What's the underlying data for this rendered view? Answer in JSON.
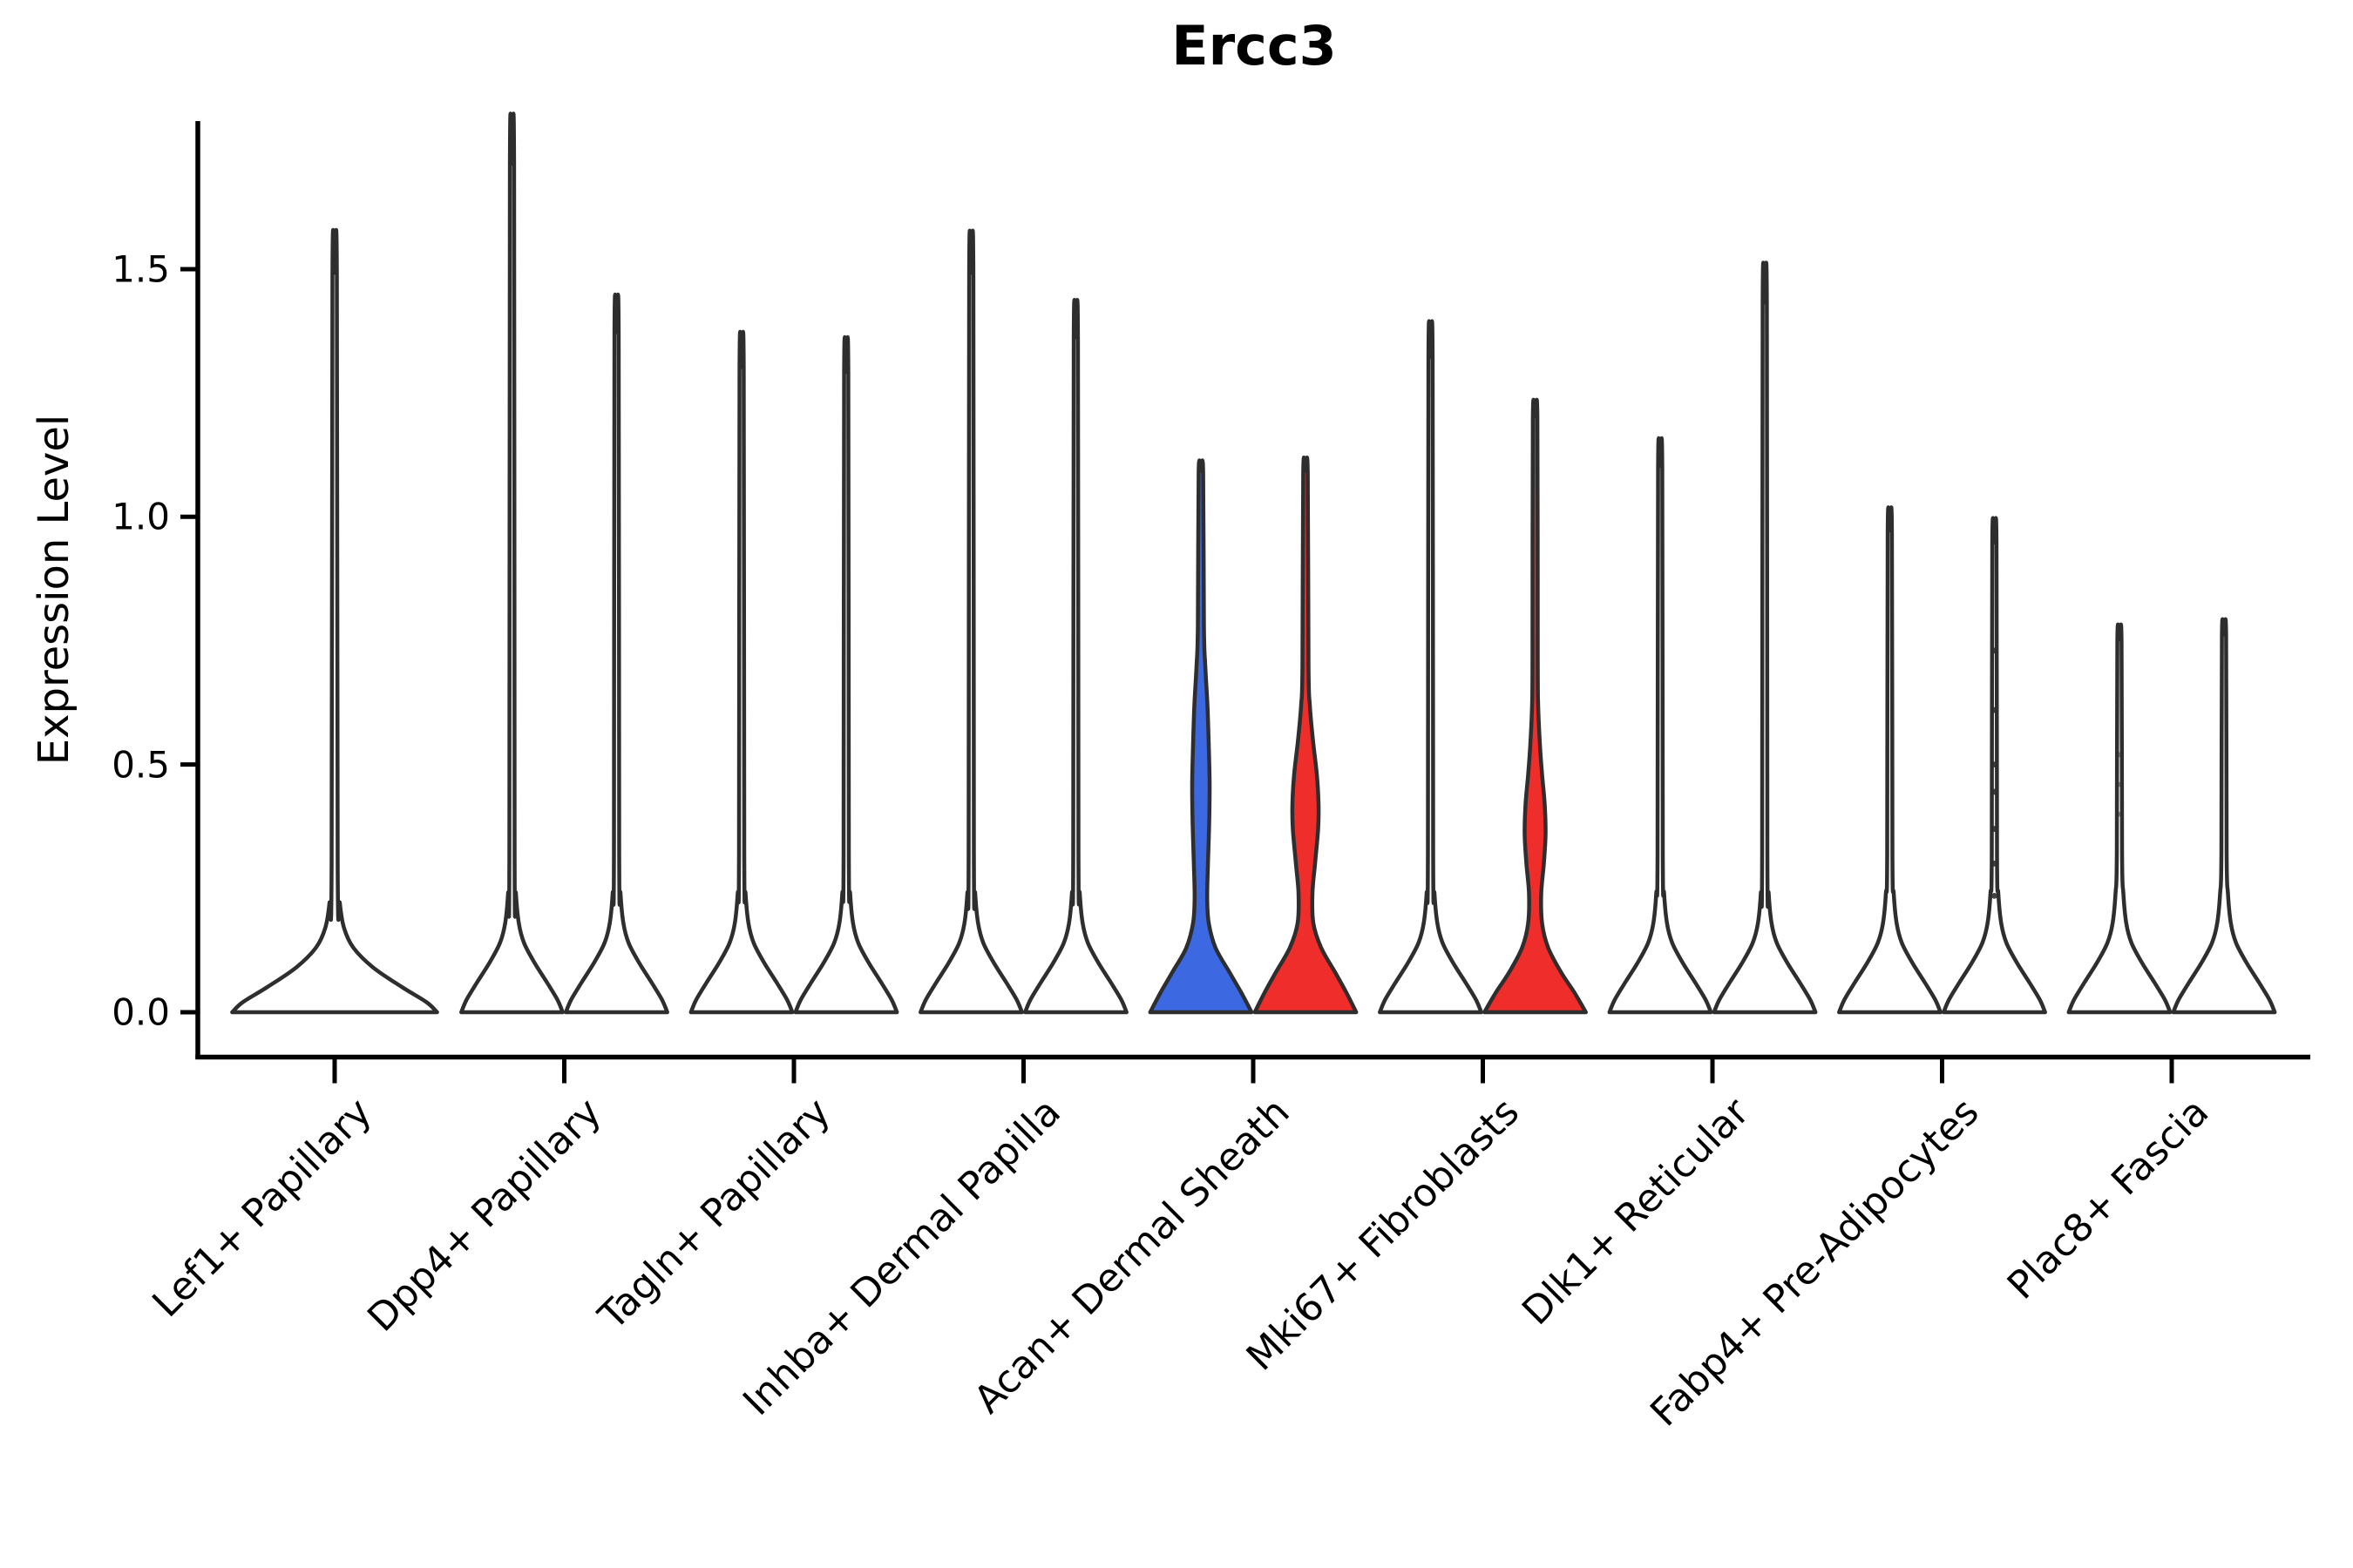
{
  "title": "Ercc3",
  "ylabel": "Expression Level",
  "chart_data": {
    "type": "violin",
    "title": "Ercc3",
    "xlabel": "",
    "ylabel": "Expression Level",
    "ylim": [
      -0.09,
      1.8
    ],
    "yticks": [
      0.0,
      0.5,
      1.0,
      1.5
    ],
    "ytick_labels": [
      "0.0",
      "0.5",
      "1.0",
      "1.5"
    ],
    "grid": false,
    "legend": "none",
    "categories": [
      "Lef1+ Papillary",
      "Dpp4+ Papillary",
      "Tagln+ Papillary",
      "Inhba+ Dermal Papilla",
      "Acan+ Dermal Sheath",
      "Mki67+ Fibroblasts",
      "Dlk1+ Reticular",
      "Fabp4+ Pre-Adipocytes",
      "Plac8+ Fascia"
    ],
    "colors": {
      "group_blue": "#3C69E1",
      "group_red": "#EF2D2A",
      "outline": "#2e2e2e",
      "axis": "#000000"
    },
    "violins": [
      {
        "category": 0,
        "position": "center",
        "max": 1.49,
        "fill": "#ffffff",
        "profile": "wide_spike",
        "width": 120
      },
      {
        "category": 1,
        "position": "left",
        "max": 1.71,
        "fill": "#ffffff",
        "profile": "spike",
        "width": 60
      },
      {
        "category": 1,
        "position": "right",
        "max": 1.37,
        "fill": "#ffffff",
        "profile": "spike",
        "width": 60
      },
      {
        "category": 2,
        "position": "left",
        "max": 1.3,
        "fill": "#ffffff",
        "profile": "spike",
        "width": 60
      },
      {
        "category": 2,
        "position": "right",
        "max": 1.29,
        "fill": "#ffffff",
        "profile": "spike",
        "width": 60
      },
      {
        "category": 3,
        "position": "left",
        "max": 1.49,
        "fill": "#ffffff",
        "profile": "spike",
        "width": 60
      },
      {
        "category": 3,
        "position": "right",
        "max": 1.36,
        "fill": "#ffffff",
        "profile": "spike",
        "width": 60
      },
      {
        "category": 4,
        "position": "left",
        "max": 1.09,
        "fill": "#3C69E1",
        "profile": "bulge_blue",
        "width": 60
      },
      {
        "category": 4,
        "position": "right",
        "max": 1.09,
        "fill": "#EF2D2A",
        "profile": "bulge_red_large",
        "width": 60
      },
      {
        "category": 5,
        "position": "left",
        "max": 1.32,
        "fill": "#ffffff",
        "profile": "spike",
        "width": 60
      },
      {
        "category": 5,
        "position": "right",
        "max": 1.2,
        "fill": "#EF2D2A",
        "profile": "bulge_red_small",
        "width": 60
      },
      {
        "category": 6,
        "position": "left",
        "max": 1.1,
        "fill": "#ffffff",
        "profile": "spike",
        "width": 60
      },
      {
        "category": 6,
        "position": "right",
        "max": 1.43,
        "fill": "#ffffff",
        "profile": "spike",
        "width": 60
      },
      {
        "category": 7,
        "position": "left",
        "max": 0.97,
        "fill": "#ffffff",
        "profile": "spike",
        "width": 60
      },
      {
        "category": 7,
        "position": "right",
        "max": 0.95,
        "fill": "#ffffff",
        "profile": "spike",
        "width": 60,
        "dots": [
          0.95,
          0.73,
          0.61,
          0.5,
          0.445,
          0.37,
          0.3,
          0.235
        ]
      },
      {
        "category": 8,
        "position": "left",
        "max": 0.75,
        "fill": "#ffffff",
        "profile": "spike",
        "width": 60,
        "dots_faint": [
          0.52,
          0.46,
          0.4
        ]
      },
      {
        "category": 8,
        "position": "right",
        "max": 0.76,
        "fill": "#ffffff",
        "profile": "spike",
        "width": 60
      }
    ],
    "profile_templates": {
      "spike": [
        [
          0,
          0.97
        ],
        [
          0.025,
          0.87
        ],
        [
          0.06,
          0.67
        ],
        [
          0.1,
          0.43
        ],
        [
          0.14,
          0.23
        ],
        [
          0.18,
          0.13
        ],
        [
          0.24,
          0.075
        ],
        [
          0.32,
          0.05
        ],
        [
          null,
          0.04
        ]
      ],
      "wide_spike": [
        [
          0,
          0.98
        ],
        [
          0.02,
          0.88
        ],
        [
          0.05,
          0.65
        ],
        [
          0.09,
          0.37
        ],
        [
          0.13,
          0.18
        ],
        [
          0.17,
          0.09
        ],
        [
          0.22,
          0.05
        ],
        [
          0.3,
          0.029
        ],
        [
          null,
          0.021
        ]
      ],
      "bulge_blue": [
        [
          0,
          0.97
        ],
        [
          0.04,
          0.77
        ],
        [
          0.08,
          0.55
        ],
        [
          0.13,
          0.28
        ],
        [
          0.18,
          0.15
        ],
        [
          0.23,
          0.12
        ],
        [
          0.3,
          0.135
        ],
        [
          0.38,
          0.158
        ],
        [
          0.46,
          0.167
        ],
        [
          0.54,
          0.15
        ],
        [
          0.62,
          0.125
        ],
        [
          0.7,
          0.083
        ],
        [
          0.78,
          0.058
        ],
        [
          null,
          0.043
        ]
      ],
      "bulge_red_large": [
        [
          0,
          0.97
        ],
        [
          0.04,
          0.78
        ],
        [
          0.08,
          0.57
        ],
        [
          0.13,
          0.3
        ],
        [
          0.18,
          0.15
        ],
        [
          0.24,
          0.133
        ],
        [
          0.3,
          0.183
        ],
        [
          0.37,
          0.242
        ],
        [
          0.42,
          0.25
        ],
        [
          0.48,
          0.217
        ],
        [
          0.55,
          0.142
        ],
        [
          0.62,
          0.083
        ],
        [
          0.7,
          0.058
        ],
        [
          null,
          0.043
        ]
      ],
      "bulge_red_small": [
        [
          0,
          0.97
        ],
        [
          0.04,
          0.75
        ],
        [
          0.08,
          0.5
        ],
        [
          0.13,
          0.25
        ],
        [
          0.18,
          0.133
        ],
        [
          0.24,
          0.117
        ],
        [
          0.3,
          0.167
        ],
        [
          0.36,
          0.2
        ],
        [
          0.42,
          0.183
        ],
        [
          0.48,
          0.133
        ],
        [
          0.54,
          0.092
        ],
        [
          0.62,
          0.058
        ],
        [
          0.72,
          0.05
        ],
        [
          null,
          0.043
        ]
      ]
    }
  }
}
